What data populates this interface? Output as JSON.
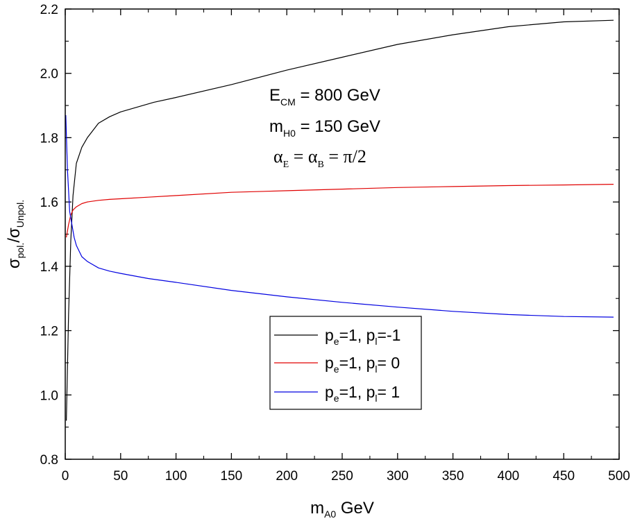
{
  "chart_data": {
    "type": "line",
    "xlabel": {
      "main": "m",
      "sub": "A0",
      "rest": " GeV"
    },
    "ylabel": {
      "s1": "σ",
      "sub1": "pol.",
      "slash": "/σ",
      "sub2": "Unpol."
    },
    "xlim": [
      0,
      500
    ],
    "ylim": [
      0.8,
      2.2
    ],
    "x_ticks": [
      0,
      50,
      100,
      150,
      200,
      250,
      300,
      350,
      400,
      450,
      500
    ],
    "x_tick_labels": [
      "0",
      "50",
      "100",
      "150",
      "200",
      "250",
      "300",
      "350",
      "400",
      "450",
      "500"
    ],
    "y_ticks": [
      0.8,
      1.0,
      1.2,
      1.4,
      1.6,
      1.8,
      2.0,
      2.2
    ],
    "y_tick_labels": [
      "0.8",
      "1.0",
      "1.2",
      "1.4",
      "1.6",
      "1.8",
      "2.0",
      "2.2"
    ],
    "annotations": [
      {
        "main": "E",
        "sub": "CM",
        "rest": " = 800 GeV"
      },
      {
        "main": "m",
        "sub": "H0",
        "rest": " = 150 GeV"
      },
      {
        "p1": "α",
        "s1": "E",
        "mid": " = α",
        "s2": "B",
        "rest": " = π/2"
      }
    ],
    "legend_position": "bottom-center",
    "series": [
      {
        "label_parts": {
          "a": "p",
          "s1": "e",
          "b": "=1, p",
          "s2": "l",
          "c": "=-1"
        },
        "color": "#000000",
        "x": [
          1,
          3,
          5,
          7,
          10,
          15,
          20,
          30,
          40,
          50,
          60,
          80,
          100,
          150,
          200,
          250,
          300,
          350,
          400,
          450,
          495
        ],
        "y": [
          0.92,
          1.25,
          1.48,
          1.62,
          1.72,
          1.77,
          1.8,
          1.845,
          1.865,
          1.88,
          1.89,
          1.91,
          1.925,
          1.965,
          2.01,
          2.05,
          2.09,
          2.12,
          2.145,
          2.16,
          2.165
        ]
      },
      {
        "label_parts": {
          "a": "p",
          "s1": "e",
          "b": "=1, p",
          "s2": "l",
          "c": "= 0"
        },
        "color": "#e00000",
        "x": [
          1,
          3,
          5,
          7,
          10,
          15,
          20,
          30,
          40,
          50,
          75,
          100,
          150,
          200,
          250,
          300,
          350,
          400,
          450,
          495
        ],
        "y": [
          1.49,
          1.53,
          1.56,
          1.575,
          1.585,
          1.595,
          1.6,
          1.605,
          1.608,
          1.61,
          1.615,
          1.62,
          1.63,
          1.635,
          1.64,
          1.645,
          1.648,
          1.651,
          1.653,
          1.655
        ]
      },
      {
        "label_parts": {
          "a": "p",
          "s1": "e",
          "b": "=1, p",
          "s2": "l",
          "c": "= 1"
        },
        "color": "#0000e0",
        "x": [
          0.5,
          2,
          4,
          6,
          8,
          10,
          15,
          20,
          30,
          40,
          50,
          75,
          100,
          150,
          200,
          250,
          300,
          350,
          400,
          450,
          495
        ],
        "y": [
          1.87,
          1.7,
          1.57,
          1.53,
          1.49,
          1.465,
          1.43,
          1.415,
          1.395,
          1.385,
          1.378,
          1.362,
          1.35,
          1.325,
          1.305,
          1.288,
          1.273,
          1.26,
          1.25,
          1.244,
          1.242
        ]
      }
    ]
  }
}
